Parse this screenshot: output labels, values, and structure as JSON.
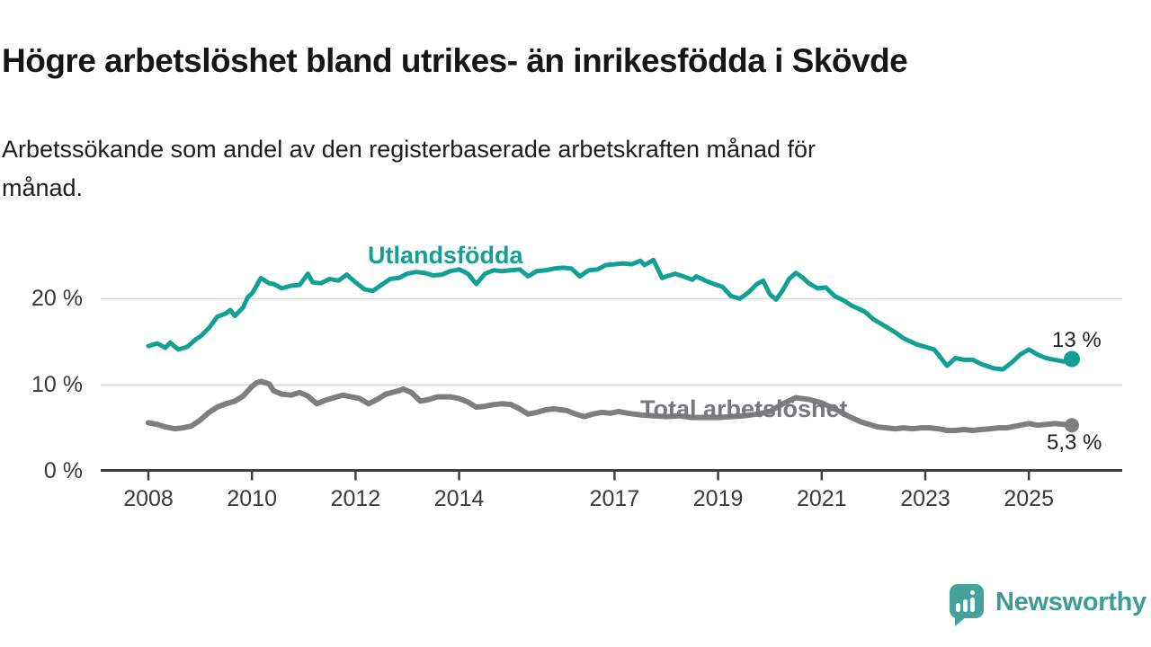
{
  "header": {
    "title": "Högre arbetslöshet bland utrikes- än inrikesfödda i Skövde",
    "subtitle_lines": [
      "Arbetssökande som andel av den registerbaserade arbetskraften månad för",
      "månad."
    ]
  },
  "branding": {
    "logo_text": "Newsworthy",
    "logo_icon": "speech-bubble-bar-chart-icon"
  },
  "colors": {
    "series_foreign_born": "#12a095",
    "series_total": "#7e7e7e",
    "series_total_label": "#77787b",
    "axis": "#3f3f3f",
    "gridline": "#d9d9d9",
    "text": "#1d1d1d",
    "logo_teal": "#47a29b"
  },
  "chart_data": {
    "type": "line",
    "title": "Högre arbetslöshet bland utrikes- än inrikesfödda i Skövde",
    "subtitle": "Arbetssökande som andel av den registerbaserade arbetskraften månad för månad.",
    "unit": "%",
    "grid": "horizontal-only",
    "legend_position": "inline-labels",
    "x_axis": {
      "min": 2007.1,
      "max": 2026.8,
      "ticks": [
        {
          "label": "2008",
          "year": 2008
        },
        {
          "label": "2010",
          "year": 2010
        },
        {
          "label": "2012",
          "year": 2012
        },
        {
          "label": "2014",
          "year": 2014
        },
        {
          "label": "2017",
          "year": 2017
        },
        {
          "label": "2019",
          "year": 2019
        },
        {
          "label": "2021",
          "year": 2021
        },
        {
          "label": "2023",
          "year": 2023
        },
        {
          "label": "2025",
          "year": 2025
        }
      ]
    },
    "y_axis": {
      "min": 0,
      "max": 26,
      "ticks": [
        {
          "label": "0 %",
          "value": 0
        },
        {
          "label": "10 %",
          "value": 10
        },
        {
          "label": "20 %",
          "value": 20
        }
      ]
    },
    "series": [
      {
        "name": "Utlandsfödda",
        "color": "#12a095",
        "end_label": "13 %",
        "end_value": 13,
        "points": [
          [
            2008.0,
            14.5
          ],
          [
            2008.17,
            14.8
          ],
          [
            2008.33,
            14.3
          ],
          [
            2008.42,
            14.9
          ],
          [
            2008.58,
            14.1
          ],
          [
            2008.75,
            14.4
          ],
          [
            2008.92,
            15.3
          ],
          [
            2009.0,
            15.6
          ],
          [
            2009.17,
            16.6
          ],
          [
            2009.33,
            17.9
          ],
          [
            2009.5,
            18.3
          ],
          [
            2009.58,
            18.7
          ],
          [
            2009.67,
            18.0
          ],
          [
            2009.83,
            19.0
          ],
          [
            2009.92,
            20.2
          ],
          [
            2010.0,
            20.6
          ],
          [
            2010.08,
            21.4
          ],
          [
            2010.17,
            22.4
          ],
          [
            2010.33,
            21.8
          ],
          [
            2010.42,
            21.7
          ],
          [
            2010.58,
            21.2
          ],
          [
            2010.75,
            21.5
          ],
          [
            2010.92,
            21.6
          ],
          [
            2011.08,
            22.9
          ],
          [
            2011.17,
            21.9
          ],
          [
            2011.33,
            21.8
          ],
          [
            2011.5,
            22.3
          ],
          [
            2011.67,
            22.1
          ],
          [
            2011.83,
            22.8
          ],
          [
            2012.0,
            21.9
          ],
          [
            2012.17,
            21.1
          ],
          [
            2012.33,
            20.9
          ],
          [
            2012.5,
            21.6
          ],
          [
            2012.67,
            22.3
          ],
          [
            2012.83,
            22.4
          ],
          [
            2013.0,
            22.9
          ],
          [
            2013.17,
            23.1
          ],
          [
            2013.33,
            23.0
          ],
          [
            2013.5,
            22.7
          ],
          [
            2013.67,
            22.8
          ],
          [
            2013.83,
            23.2
          ],
          [
            2014.0,
            23.4
          ],
          [
            2014.17,
            22.9
          ],
          [
            2014.33,
            21.7
          ],
          [
            2014.5,
            22.9
          ],
          [
            2014.67,
            23.3
          ],
          [
            2014.83,
            23.2
          ],
          [
            2015.0,
            23.3
          ],
          [
            2015.17,
            23.4
          ],
          [
            2015.33,
            22.6
          ],
          [
            2015.5,
            23.2
          ],
          [
            2015.67,
            23.3
          ],
          [
            2015.83,
            23.5
          ],
          [
            2016.0,
            23.6
          ],
          [
            2016.17,
            23.5
          ],
          [
            2016.33,
            22.6
          ],
          [
            2016.5,
            23.3
          ],
          [
            2016.67,
            23.4
          ],
          [
            2016.83,
            23.9
          ],
          [
            2017.0,
            24.0
          ],
          [
            2017.17,
            24.1
          ],
          [
            2017.33,
            24.0
          ],
          [
            2017.5,
            24.4
          ],
          [
            2017.58,
            23.9
          ],
          [
            2017.75,
            24.5
          ],
          [
            2017.92,
            22.4
          ],
          [
            2018.0,
            22.6
          ],
          [
            2018.17,
            22.9
          ],
          [
            2018.33,
            22.6
          ],
          [
            2018.5,
            22.2
          ],
          [
            2018.58,
            22.6
          ],
          [
            2018.75,
            22.1
          ],
          [
            2018.92,
            21.7
          ],
          [
            2019.08,
            21.4
          ],
          [
            2019.25,
            20.3
          ],
          [
            2019.42,
            20.0
          ],
          [
            2019.58,
            20.7
          ],
          [
            2019.75,
            21.7
          ],
          [
            2019.87,
            22.1
          ],
          [
            2020.0,
            20.5
          ],
          [
            2020.12,
            19.9
          ],
          [
            2020.25,
            21.0
          ],
          [
            2020.37,
            22.3
          ],
          [
            2020.5,
            23.0
          ],
          [
            2020.62,
            22.5
          ],
          [
            2020.75,
            21.8
          ],
          [
            2020.92,
            21.2
          ],
          [
            2021.08,
            21.3
          ],
          [
            2021.25,
            20.3
          ],
          [
            2021.42,
            19.8
          ],
          [
            2021.58,
            19.2
          ],
          [
            2021.83,
            18.5
          ],
          [
            2022.0,
            17.6
          ],
          [
            2022.17,
            17.0
          ],
          [
            2022.42,
            16.1
          ],
          [
            2022.58,
            15.4
          ],
          [
            2022.83,
            14.7
          ],
          [
            2023.0,
            14.4
          ],
          [
            2023.17,
            14.1
          ],
          [
            2023.42,
            12.2
          ],
          [
            2023.58,
            13.1
          ],
          [
            2023.75,
            12.9
          ],
          [
            2023.92,
            12.9
          ],
          [
            2024.08,
            12.4
          ],
          [
            2024.33,
            11.9
          ],
          [
            2024.5,
            11.8
          ],
          [
            2024.67,
            12.6
          ],
          [
            2024.83,
            13.5
          ],
          [
            2025.0,
            14.1
          ],
          [
            2025.17,
            13.5
          ],
          [
            2025.33,
            13.1
          ],
          [
            2025.5,
            12.9
          ],
          [
            2025.67,
            12.7
          ],
          [
            2025.83,
            13.0
          ]
        ]
      },
      {
        "name": "Total arbetslöshet",
        "color": "#7e7e7e",
        "end_label": "5,3 %",
        "end_value": 5.3,
        "points": [
          [
            2008.0,
            5.6
          ],
          [
            2008.17,
            5.4
          ],
          [
            2008.33,
            5.1
          ],
          [
            2008.5,
            4.9
          ],
          [
            2008.67,
            5.0
          ],
          [
            2008.83,
            5.2
          ],
          [
            2009.0,
            5.9
          ],
          [
            2009.17,
            6.8
          ],
          [
            2009.33,
            7.4
          ],
          [
            2009.5,
            7.8
          ],
          [
            2009.67,
            8.1
          ],
          [
            2009.83,
            8.7
          ],
          [
            2010.0,
            9.8
          ],
          [
            2010.08,
            10.2
          ],
          [
            2010.17,
            10.4
          ],
          [
            2010.33,
            10.1
          ],
          [
            2010.42,
            9.3
          ],
          [
            2010.58,
            8.9
          ],
          [
            2010.75,
            8.8
          ],
          [
            2010.92,
            9.1
          ],
          [
            2011.08,
            8.7
          ],
          [
            2011.25,
            7.8
          ],
          [
            2011.42,
            8.2
          ],
          [
            2011.58,
            8.5
          ],
          [
            2011.75,
            8.8
          ],
          [
            2011.92,
            8.6
          ],
          [
            2012.08,
            8.4
          ],
          [
            2012.25,
            7.8
          ],
          [
            2012.42,
            8.3
          ],
          [
            2012.58,
            8.9
          ],
          [
            2012.83,
            9.3
          ],
          [
            2012.92,
            9.5
          ],
          [
            2013.08,
            9.1
          ],
          [
            2013.25,
            8.1
          ],
          [
            2013.42,
            8.3
          ],
          [
            2013.58,
            8.6
          ],
          [
            2013.83,
            8.6
          ],
          [
            2014.0,
            8.4
          ],
          [
            2014.17,
            8.0
          ],
          [
            2014.33,
            7.4
          ],
          [
            2014.5,
            7.5
          ],
          [
            2014.67,
            7.7
          ],
          [
            2014.83,
            7.8
          ],
          [
            2015.0,
            7.7
          ],
          [
            2015.17,
            7.2
          ],
          [
            2015.33,
            6.6
          ],
          [
            2015.5,
            6.8
          ],
          [
            2015.67,
            7.1
          ],
          [
            2015.83,
            7.2
          ],
          [
            2016.08,
            7.0
          ],
          [
            2016.25,
            6.6
          ],
          [
            2016.42,
            6.3
          ],
          [
            2016.58,
            6.6
          ],
          [
            2016.75,
            6.8
          ],
          [
            2016.92,
            6.7
          ],
          [
            2017.08,
            6.9
          ],
          [
            2017.25,
            6.7
          ],
          [
            2017.5,
            6.5
          ],
          [
            2017.75,
            6.4
          ],
          [
            2018.0,
            6.3
          ],
          [
            2018.25,
            6.4
          ],
          [
            2018.5,
            6.2
          ],
          [
            2018.75,
            6.2
          ],
          [
            2019.0,
            6.2
          ],
          [
            2019.25,
            6.3
          ],
          [
            2019.5,
            6.4
          ],
          [
            2019.75,
            6.6
          ],
          [
            2020.0,
            6.9
          ],
          [
            2020.25,
            7.8
          ],
          [
            2020.5,
            8.5
          ],
          [
            2020.75,
            8.3
          ],
          [
            2021.0,
            7.9
          ],
          [
            2021.25,
            7.2
          ],
          [
            2021.5,
            6.4
          ],
          [
            2021.75,
            5.7
          ],
          [
            2021.92,
            5.4
          ],
          [
            2022.08,
            5.1
          ],
          [
            2022.25,
            5.0
          ],
          [
            2022.42,
            4.9
          ],
          [
            2022.58,
            5.0
          ],
          [
            2022.75,
            4.9
          ],
          [
            2022.92,
            5.0
          ],
          [
            2023.08,
            5.0
          ],
          [
            2023.25,
            4.9
          ],
          [
            2023.42,
            4.7
          ],
          [
            2023.58,
            4.7
          ],
          [
            2023.75,
            4.8
          ],
          [
            2023.92,
            4.7
          ],
          [
            2024.08,
            4.8
          ],
          [
            2024.25,
            4.9
          ],
          [
            2024.42,
            5.0
          ],
          [
            2024.58,
            5.0
          ],
          [
            2024.75,
            5.2
          ],
          [
            2025.0,
            5.5
          ],
          [
            2025.17,
            5.3
          ],
          [
            2025.33,
            5.4
          ],
          [
            2025.5,
            5.5
          ],
          [
            2025.67,
            5.4
          ],
          [
            2025.83,
            5.3
          ]
        ]
      }
    ]
  }
}
